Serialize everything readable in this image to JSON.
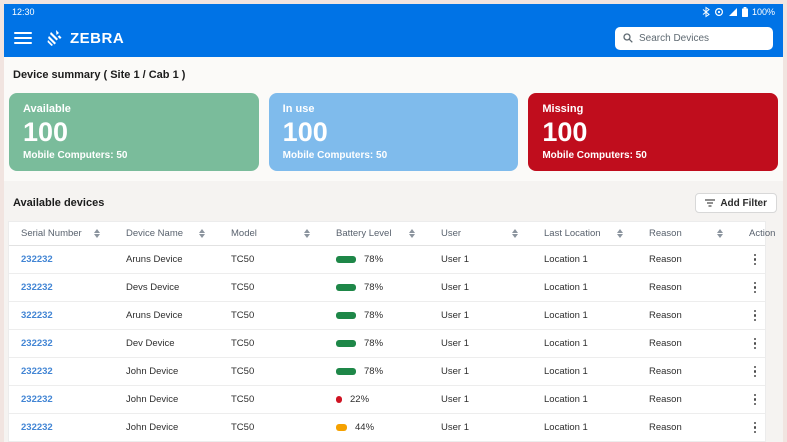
{
  "status_bar": {
    "time": "12:30",
    "battery_pct_label": "100%",
    "icons": [
      "bluetooth-icon",
      "eye-icon",
      "signal-icon",
      "battery-icon"
    ]
  },
  "header": {
    "brand": "ZEBRA",
    "search_placeholder": "Search Devices"
  },
  "summary": {
    "title": "Device summary ( Site 1 / Cab 1 )",
    "cards": [
      {
        "label": "Available",
        "count": "100",
        "sub": "Mobile Computers: 50",
        "color": "#7abc9b"
      },
      {
        "label": "In use",
        "count": "100",
        "sub": "Mobile Computers: 50",
        "color": "#7fbbec"
      },
      {
        "label": "Missing",
        "count": "100",
        "sub": "Mobile Computers: 50",
        "color": "#c00d1d"
      }
    ]
  },
  "devices": {
    "title": "Available devices",
    "add_filter_label": "Add Filter",
    "table": {
      "columns": [
        "Serial Number",
        "Device Name",
        "Model",
        "Battery Level",
        "User",
        "Last Location",
        "Reason",
        "Action"
      ],
      "sortable": [
        true,
        true,
        true,
        true,
        true,
        true,
        true,
        false
      ],
      "rows": [
        {
          "serial": "232232",
          "name": "Aruns Device",
          "model": "TC50",
          "battery_pct": 78,
          "battery_color": "#1e8748",
          "user": "User 1",
          "location": "Location 1",
          "reason": "Reason"
        },
        {
          "serial": "232232",
          "name": "Devs Device",
          "model": "TC50",
          "battery_pct": 78,
          "battery_color": "#1e8748",
          "user": "User 1",
          "location": "Location 1",
          "reason": "Reason"
        },
        {
          "serial": "322232",
          "name": "Aruns Device",
          "model": "TC50",
          "battery_pct": 78,
          "battery_color": "#1e8748",
          "user": "User 1",
          "location": "Location 1",
          "reason": "Reason"
        },
        {
          "serial": "232232",
          "name": "Dev Device",
          "model": "TC50",
          "battery_pct": 78,
          "battery_color": "#1e8748",
          "user": "User 1",
          "location": "Location 1",
          "reason": "Reason"
        },
        {
          "serial": "232232",
          "name": "John Device",
          "model": "TC50",
          "battery_pct": 78,
          "battery_color": "#1e8748",
          "user": "User 1",
          "location": "Location 1",
          "reason": "Reason"
        },
        {
          "serial": "232232",
          "name": "John Device",
          "model": "TC50",
          "battery_pct": 22,
          "battery_color": "#cf1322",
          "user": "User 1",
          "location": "Location 1",
          "reason": "Reason"
        },
        {
          "serial": "232232",
          "name": "John Device",
          "model": "TC50",
          "battery_pct": 44,
          "battery_color": "#f5a100",
          "user": "User 1",
          "location": "Location 1",
          "reason": "Reason"
        }
      ]
    }
  },
  "colors": {
    "topbar_blue": "#0073e6",
    "frame": "#f1e4e0",
    "serial_link": "#4285d4"
  }
}
